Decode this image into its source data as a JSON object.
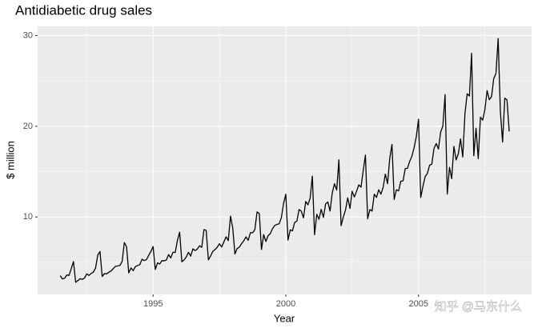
{
  "chart_data": {
    "type": "line",
    "title": "Antidiabetic drug sales",
    "x_label": "Year",
    "y_label": "$ million",
    "watermark": "知乎 @马东什么",
    "color": "#000000",
    "grid": true,
    "xlim": [
      1990.65,
      2009.26
    ],
    "xticks": [
      1995,
      2000,
      2005
    ],
    "xminor": [
      1992.5,
      1997.5,
      2002.5,
      2007.5
    ],
    "ylim": [
      1.47,
      31.01
    ],
    "yticks": [
      10,
      20,
      30
    ],
    "yminor": [
      5,
      15,
      25
    ],
    "x": [
      1991.5,
      1991.583,
      1991.667,
      1991.75,
      1991.833,
      1991.917,
      1992,
      1992.083,
      1992.167,
      1992.25,
      1992.333,
      1992.417,
      1992.5,
      1992.583,
      1992.667,
      1992.75,
      1992.833,
      1992.917,
      1993,
      1993.083,
      1993.167,
      1993.25,
      1993.333,
      1993.417,
      1993.5,
      1993.583,
      1993.667,
      1993.75,
      1993.833,
      1993.917,
      1994,
      1994.083,
      1994.167,
      1994.25,
      1994.333,
      1994.417,
      1994.5,
      1994.583,
      1994.667,
      1994.75,
      1994.833,
      1994.917,
      1995,
      1995.083,
      1995.167,
      1995.25,
      1995.333,
      1995.417,
      1995.5,
      1995.583,
      1995.667,
      1995.75,
      1995.833,
      1995.917,
      1996,
      1996.083,
      1996.167,
      1996.25,
      1996.333,
      1996.417,
      1996.5,
      1996.583,
      1996.667,
      1996.75,
      1996.833,
      1996.917,
      1997,
      1997.083,
      1997.167,
      1997.25,
      1997.333,
      1997.417,
      1997.5,
      1997.583,
      1997.667,
      1997.75,
      1997.833,
      1997.917,
      1998,
      1998.083,
      1998.167,
      1998.25,
      1998.333,
      1998.417,
      1998.5,
      1998.583,
      1998.667,
      1998.75,
      1998.833,
      1998.917,
      1999,
      1999.083,
      1999.167,
      1999.25,
      1999.333,
      1999.417,
      1999.5,
      1999.583,
      1999.667,
      1999.75,
      1999.833,
      1999.917,
      2000,
      2000.083,
      2000.167,
      2000.25,
      2000.333,
      2000.417,
      2000.5,
      2000.583,
      2000.667,
      2000.75,
      2000.833,
      2000.917,
      2001,
      2001.083,
      2001.167,
      2001.25,
      2001.333,
      2001.417,
      2001.5,
      2001.583,
      2001.667,
      2001.75,
      2001.833,
      2001.917,
      2002,
      2002.083,
      2002.167,
      2002.25,
      2002.333,
      2002.417,
      2002.5,
      2002.583,
      2002.667,
      2002.75,
      2002.833,
      2002.917,
      2003,
      2003.083,
      2003.167,
      2003.25,
      2003.333,
      2003.417,
      2003.5,
      2003.583,
      2003.667,
      2003.75,
      2003.833,
      2003.917,
      2004,
      2004.083,
      2004.167,
      2004.25,
      2004.333,
      2004.417,
      2004.5,
      2004.583,
      2004.667,
      2004.75,
      2004.833,
      2004.917,
      2005,
      2005.083,
      2005.167,
      2005.25,
      2005.333,
      2005.417,
      2005.5,
      2005.583,
      2005.667,
      2005.75,
      2005.833,
      2005.917,
      2006,
      2006.083,
      2006.167,
      2006.25,
      2006.333,
      2006.417,
      2006.5,
      2006.583,
      2006.667,
      2006.75,
      2006.833,
      2006.917,
      2007,
      2007.083,
      2007.167,
      2007.25,
      2007.333,
      2007.417,
      2007.5,
      2007.583,
      2007.667,
      2007.75,
      2007.833,
      2007.917,
      2008,
      2008.083,
      2008.167,
      2008.25,
      2008.333,
      2008.417
    ],
    "values": [
      3.53,
      3.18,
      3.25,
      3.61,
      3.57,
      4.31,
      5.09,
      2.81,
      2.99,
      3.2,
      3.13,
      3.27,
      3.74,
      3.56,
      3.78,
      3.92,
      4.39,
      5.81,
      6.19,
      3.45,
      3.77,
      3.73,
      3.91,
      4.05,
      4.32,
      4.56,
      4.61,
      4.67,
      5.09,
      7.18,
      6.73,
      3.84,
      4.39,
      4.08,
      4.54,
      4.65,
      4.75,
      5.35,
      5.2,
      5.3,
      5.77,
      6.2,
      6.75,
      4.22,
      4.95,
      4.82,
      5.19,
      5.17,
      5.26,
      5.86,
      5.49,
      6.12,
      6.09,
      7.42,
      8.33,
      5.07,
      5.26,
      5.6,
      6.11,
      5.69,
      6.49,
      6.3,
      6.47,
      6.83,
      6.65,
      8.61,
      8.52,
      5.28,
      5.71,
      6.21,
      6.41,
      6.67,
      7.05,
      6.7,
      7.25,
      7.82,
      7.4,
      10.1,
      8.8,
      5.92,
      6.53,
      6.68,
      7.06,
      7.38,
      7.81,
      7.43,
      8.28,
      8.26,
      8.6,
      10.56,
      10.39,
      6.42,
      8.06,
      7.3,
      7.94,
      8.17,
      8.72,
      9.07,
      9.18,
      9.25,
      9.93,
      11.53,
      12.51,
      7.46,
      8.59,
      8.47,
      9.39,
      9.56,
      10.83,
      10.64,
      9.91,
      11.71,
      11.34,
      12.08,
      14.5,
      8.05,
      10.31,
      9.75,
      10.85,
      9.96,
      11.44,
      11.66,
      10.65,
      12.65,
      13.67,
      12.97,
      16.3,
      9.05,
      10,
      10.79,
      12.11,
      10.95,
      12.84,
      12.2,
      12.85,
      13.54,
      13.29,
      15.13,
      16.83,
      9.8,
      10.82,
      10.65,
      12.51,
      12.16,
      13,
      12.52,
      13.27,
      14.73,
      13.67,
      16.5,
      18,
      11.94,
      13,
      12.88,
      13.94,
      13.99,
      15.34,
      15.37,
      16.14,
      16.69,
      17.64,
      18.87,
      20.78,
      12.15,
      13.4,
      14.46,
      14.8,
      15.71,
      15.83,
      17.55,
      18.1,
      17.5,
      19.35,
      20.03,
      23.49,
      12.54,
      15.47,
      14.23,
      17.78,
      16.29,
      16.98,
      18.61,
      16.62,
      21.43,
      23.58,
      23.33,
      28.04,
      16.76,
      19.79,
      16.43,
      21,
      20.68,
      21.83,
      23.93,
      22.93,
      23.26,
      25.25,
      25.81,
      29.67,
      21.65,
      18.26,
      23.11,
      22.91,
      19.43
    ]
  }
}
